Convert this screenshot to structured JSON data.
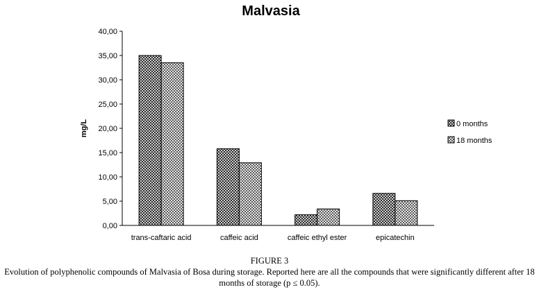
{
  "chart_data": {
    "type": "bar",
    "title": "Malvasia",
    "xlabel": "",
    "ylabel": "mg/L",
    "categories": [
      "trans-caftaric acid",
      "caffeic acid",
      "caffeic ethyl ester",
      "epicatechin"
    ],
    "series": [
      {
        "name": "0 months",
        "values": [
          35.0,
          15.8,
          2.2,
          6.6
        ]
      },
      {
        "name": "18 months",
        "values": [
          33.5,
          12.9,
          3.4,
          5.1
        ]
      }
    ],
    "ylim": [
      0,
      40
    ],
    "yticks": [
      "0,00",
      "5,00",
      "10,00",
      "15,00",
      "20,00",
      "25,00",
      "30,00",
      "35,00",
      "40,00"
    ],
    "legend": "right",
    "grid": false
  },
  "caption": {
    "figure_label": "FIGURE 3",
    "text": "Evolution of polyphenolic compounds of Malvasia of Bosa during storage. Reported here are all the compounds that were significantly different after 18 months of storage (p ≤ 0.05)."
  }
}
